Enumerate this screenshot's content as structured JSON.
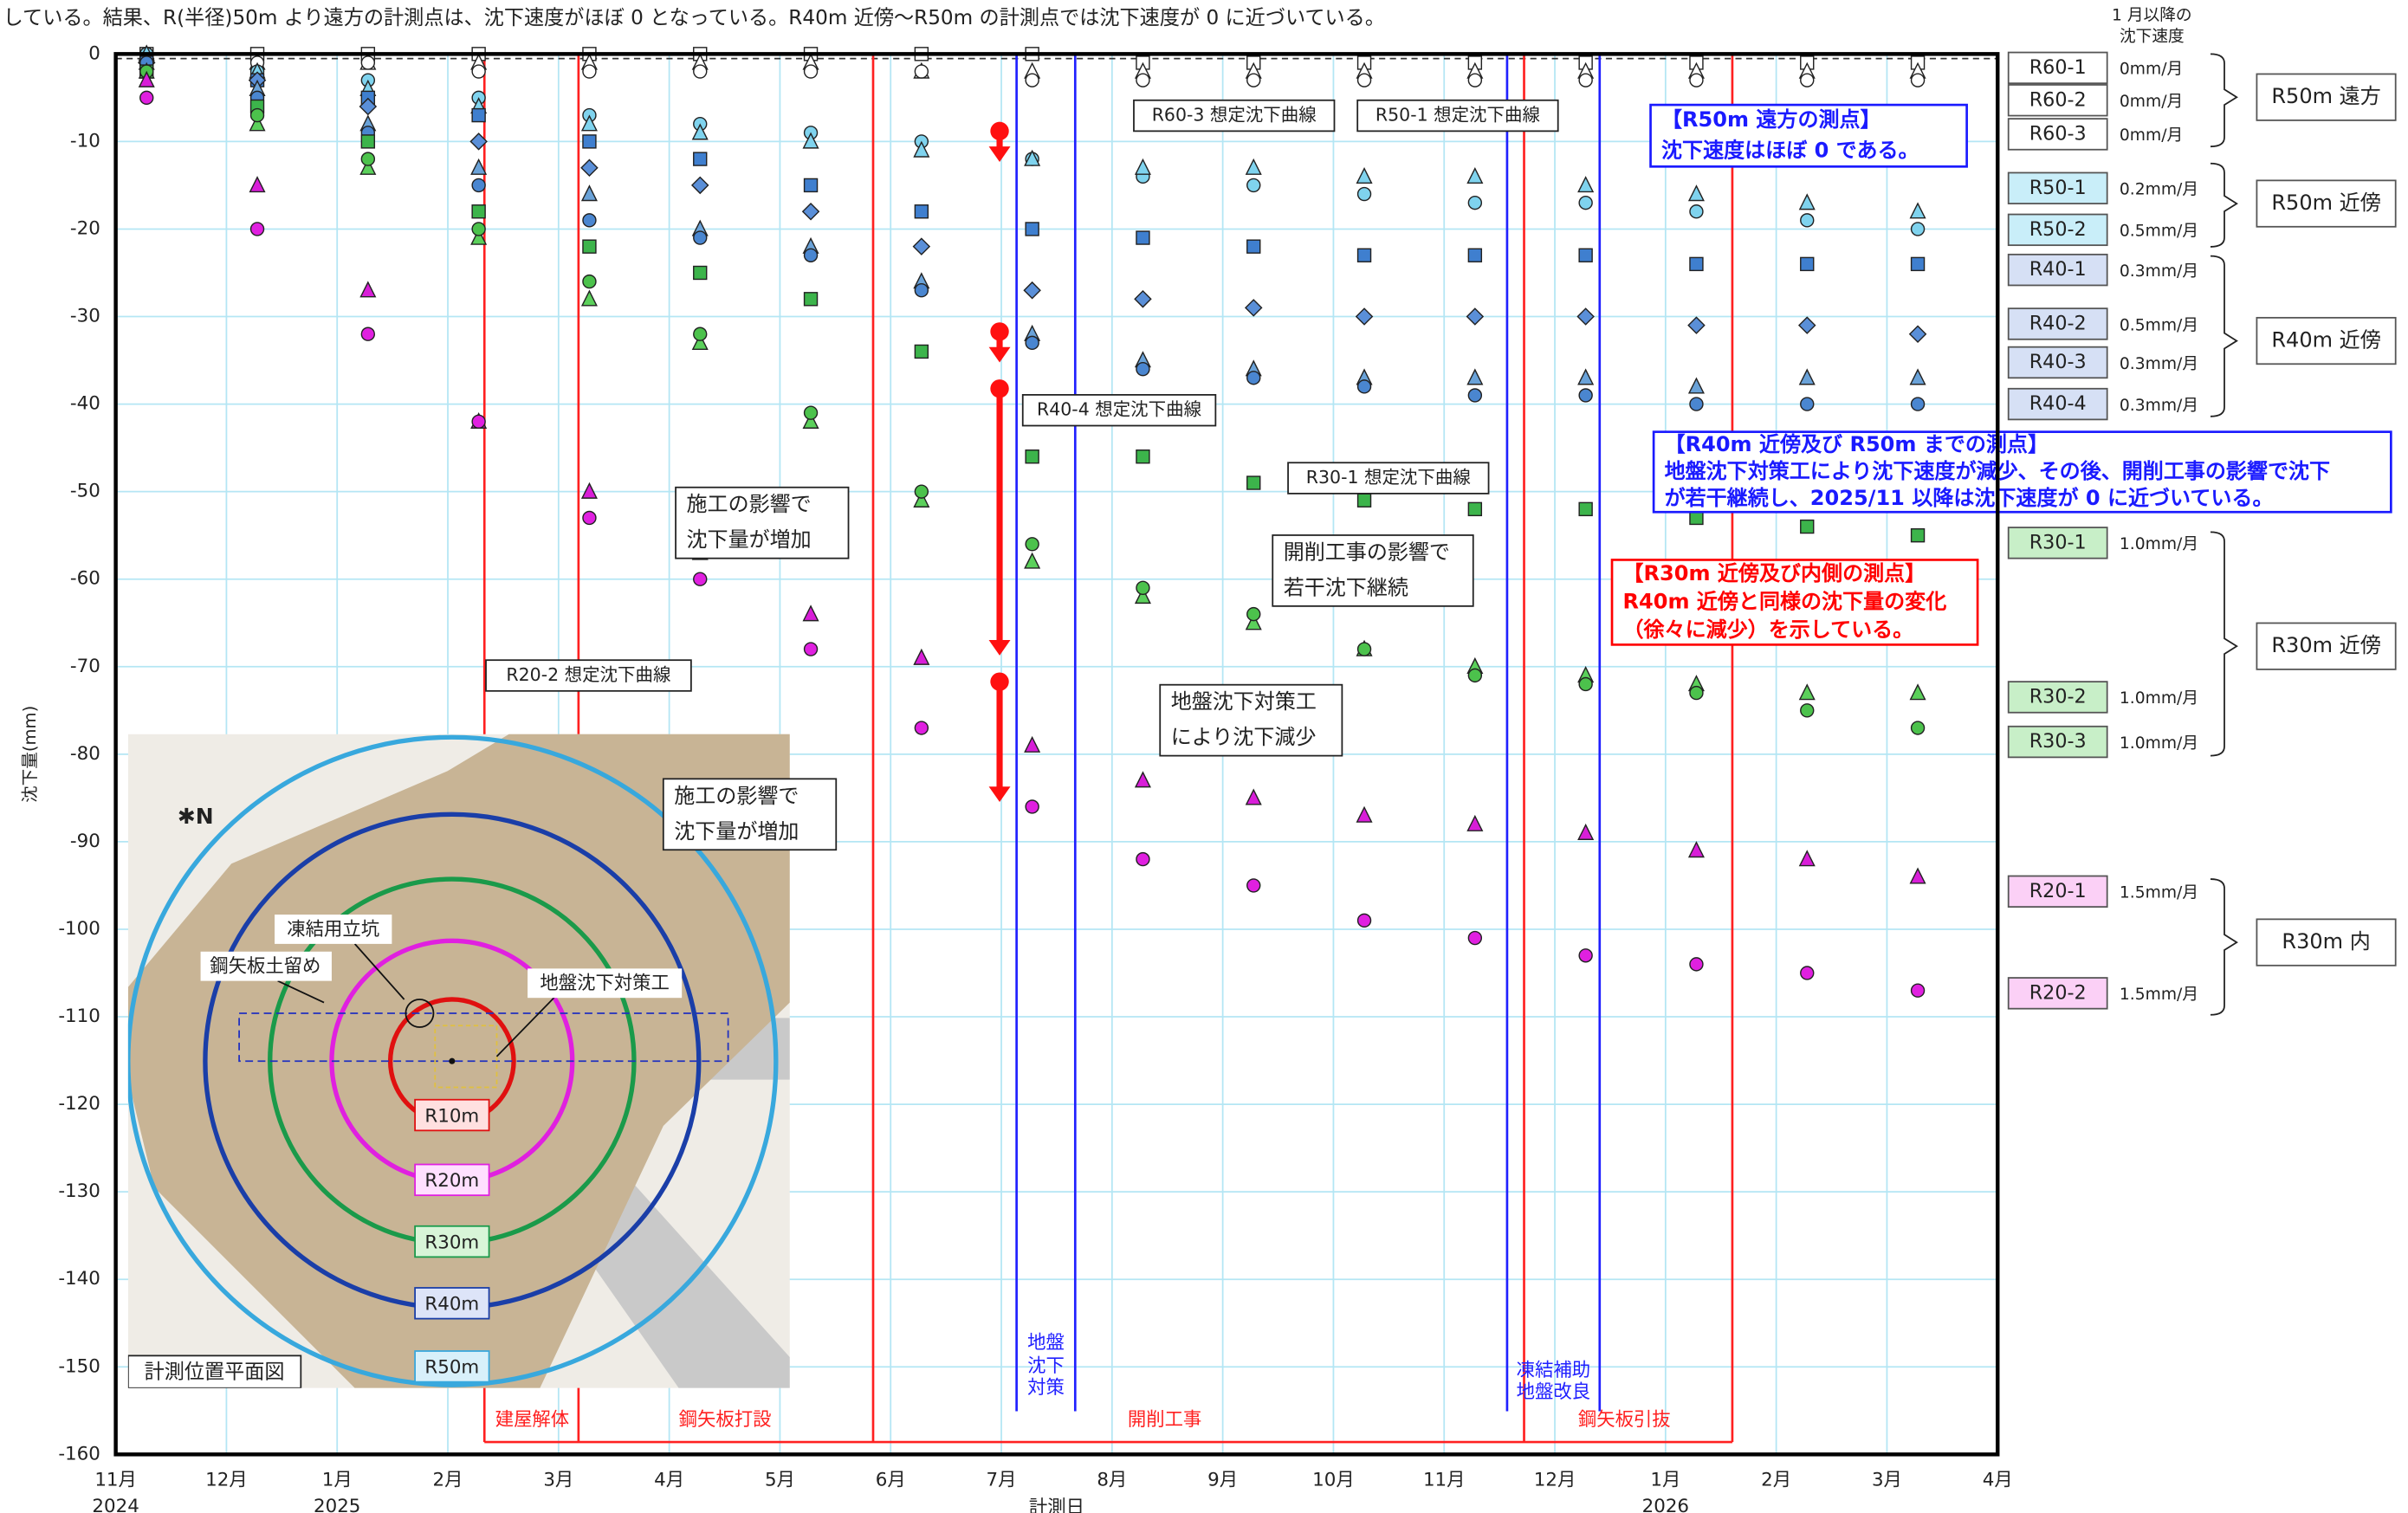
{
  "header_text": "している。結果、R(半径)50m より遠方の計測点は、沈下速度がほぼ 0 となっている。R40m 近傍～R50m の計測点では沈下速度が 0 に近づいている。",
  "chart_data": {
    "type": "scatter",
    "x_label": "計測日",
    "y_label": "沈下量(mm)",
    "x": [
      "2024-11",
      "2024-12",
      "2025-01",
      "2025-02",
      "2025-03",
      "2025-04",
      "2025-05",
      "2025-06",
      "2025-07",
      "2025-08",
      "2025-09",
      "2025-10",
      "2025-11",
      "2025-12",
      "2026-01",
      "2026-02",
      "2026-03"
    ],
    "xlim": [
      "2024-11",
      "2026-04"
    ],
    "xticks": [
      {
        "value": "2024-11",
        "label": "11月"
      },
      {
        "value": "2024-12",
        "label": "12月"
      },
      {
        "value": "2025-01",
        "label": "1月"
      },
      {
        "value": "2025-02",
        "label": "2月"
      },
      {
        "value": "2025-03",
        "label": "3月"
      },
      {
        "value": "2025-04",
        "label": "4月"
      },
      {
        "value": "2025-05",
        "label": "5月"
      },
      {
        "value": "2025-06",
        "label": "6月"
      },
      {
        "value": "2025-07",
        "label": "7月"
      },
      {
        "value": "2025-08",
        "label": "8月"
      },
      {
        "value": "2025-09",
        "label": "9月"
      },
      {
        "value": "2025-10",
        "label": "10月"
      },
      {
        "value": "2025-11",
        "label": "11月"
      },
      {
        "value": "2025-12",
        "label": "12月"
      },
      {
        "value": "2026-01",
        "label": "1月"
      },
      {
        "value": "2026-02",
        "label": "2月"
      },
      {
        "value": "2026-03",
        "label": "3月"
      },
      {
        "value": "2026-04",
        "label": "4月"
      }
    ],
    "xtick_years": [
      {
        "value": "2024-11",
        "label": "2024"
      },
      {
        "value": "2025-01",
        "label": "2025"
      },
      {
        "value": "2026-01",
        "label": "2026"
      }
    ],
    "ylim": [
      -160,
      0
    ],
    "yticks": [
      0,
      -10,
      -20,
      -30,
      -40,
      -50,
      -60,
      -70,
      -80,
      -90,
      -100,
      -110,
      -120,
      -130,
      -140,
      -150,
      -160
    ],
    "grid": true,
    "rate_header": [
      "1 月以降の",
      "沈下速度"
    ],
    "series": [
      {
        "name": "R60-1",
        "color": "#ffffff",
        "marker": "square",
        "rate": "0mm/月",
        "values": [
          0,
          0,
          0,
          0,
          0,
          0,
          0,
          0,
          0,
          -1,
          -1,
          -1,
          -1,
          -1,
          -1,
          -1,
          -1
        ]
      },
      {
        "name": "R60-2",
        "color": "#ffffff",
        "marker": "triangle",
        "rate": "0mm/月",
        "values": [
          0,
          -1,
          -1,
          -1,
          -1,
          -1,
          -1,
          -2,
          -2,
          -2,
          -2,
          -2,
          -2,
          -2,
          -2,
          -2,
          -2
        ]
      },
      {
        "name": "R60-3",
        "color": "#ffffff",
        "marker": "circle",
        "rate": "0mm/月",
        "values": [
          0,
          -1,
          -1,
          -2,
          -2,
          -2,
          -2,
          -2,
          -3,
          -3,
          -3,
          -3,
          -3,
          -3,
          -3,
          -3,
          -3
        ]
      },
      {
        "name": "R50-1",
        "color": "#7fd3ee",
        "marker": "circle",
        "rate": "0.2mm/月",
        "values": [
          0,
          -2,
          -3,
          -5,
          -7,
          -8,
          -9,
          -10,
          -12,
          -14,
          -15,
          -16,
          -17,
          -17,
          -18,
          -19,
          -20
        ]
      },
      {
        "name": "R50-2",
        "color": "#7fd3ee",
        "marker": "triangle",
        "rate": "0.5mm/月",
        "values": [
          0,
          -2,
          -4,
          -6,
          -8,
          -9,
          -10,
          -11,
          -12,
          -13,
          -13,
          -14,
          -14,
          -15,
          -16,
          -17,
          -18
        ]
      },
      {
        "name": "R40-1",
        "color": "#3f7fcf",
        "marker": "square",
        "rate": "0.3mm/月",
        "values": [
          -1,
          -3,
          -5,
          -7,
          -10,
          -12,
          -15,
          -18,
          -20,
          -21,
          -22,
          -23,
          -23,
          -23,
          -24,
          -24,
          -24
        ]
      },
      {
        "name": "R40-2",
        "color": "#5a8fd8",
        "marker": "diamond",
        "rate": "0.5mm/月",
        "values": [
          -1,
          -3,
          -6,
          -10,
          -13,
          -15,
          -18,
          -22,
          -27,
          -28,
          -29,
          -30,
          -30,
          -30,
          -31,
          -31,
          -32
        ]
      },
      {
        "name": "R40-3",
        "color": "#6aa2d8",
        "marker": "triangle",
        "rate": "0.3mm/月",
        "values": [
          -1,
          -4,
          -8,
          -13,
          -16,
          -20,
          -22,
          -26,
          -32,
          -35,
          -36,
          -37,
          -37,
          -37,
          -38,
          -37,
          -37
        ]
      },
      {
        "name": "R40-4",
        "color": "#4a86d0",
        "marker": "circle",
        "rate": "0.3mm/月",
        "values": [
          -1,
          -5,
          -9,
          -15,
          -19,
          -21,
          -23,
          -27,
          -33,
          -36,
          -37,
          -38,
          -39,
          -39,
          -40,
          -40,
          -40
        ]
      },
      {
        "name": "R30-1",
        "color": "#3cb44b",
        "marker": "square",
        "rate": "1.0mm/月",
        "values": [
          -2,
          -6,
          -10,
          -18,
          -22,
          -25,
          -28,
          -34,
          -46,
          -46,
          -49,
          -51,
          -52,
          -52,
          -53,
          -54,
          -55
        ]
      },
      {
        "name": "R30-2",
        "color": "#5bd05b",
        "marker": "triangle",
        "rate": "1.0mm/月",
        "values": [
          -2,
          -8,
          -13,
          -21,
          -28,
          -33,
          -42,
          -51,
          -58,
          -62,
          -65,
          -68,
          -70,
          -71,
          -72,
          -73,
          -73
        ]
      },
      {
        "name": "R30-3",
        "color": "#4cc24c",
        "marker": "circle",
        "rate": "1.0mm/月",
        "values": [
          -2,
          -7,
          -12,
          -20,
          -26,
          -32,
          -41,
          -50,
          -56,
          -61,
          -64,
          -68,
          -71,
          -72,
          -73,
          -75,
          -77
        ]
      },
      {
        "name": "R20-1",
        "color": "#d81ed8",
        "marker": "triangle",
        "rate": "1.5mm/月",
        "values": [
          -3,
          -15,
          -27,
          -42,
          -50,
          -57,
          -64,
          -69,
          -79,
          -83,
          -85,
          -87,
          -88,
          -89,
          -91,
          -92,
          -94
        ]
      },
      {
        "name": "R20-2",
        "color": "#e020e0",
        "marker": "circle",
        "rate": "1.5mm/月",
        "values": [
          -5,
          -20,
          -32,
          -42,
          -53,
          -60,
          -68,
          -77,
          -86,
          -92,
          -95,
          -99,
          -101,
          -103,
          -104,
          -105,
          -107
        ]
      }
    ],
    "groups": [
      "R50m 遠方",
      "R50m 近傍",
      "R40m 近傍",
      "R30m 近傍",
      "R30m 内"
    ],
    "phases": [
      "建屋解体",
      "鋼矢板打設",
      "開削工事",
      "鋼矢板引抜"
    ],
    "measures": [
      [
        "地盤",
        "沈下",
        "対策"
      ],
      [
        "凍結補助",
        "地盤改良"
      ]
    ],
    "annotations": [
      {
        "lines": [
          "R60-3 想定沈下曲線"
        ]
      },
      {
        "lines": [
          "R50-1 想定沈下曲線"
        ]
      },
      {
        "lines": [
          "【R50m 遠方の測点】",
          "沈下速度はほぼ 0 である。"
        ]
      },
      {
        "lines": [
          "R40-4 想定沈下曲線"
        ]
      },
      {
        "lines": [
          "R30-1 想定沈下曲線"
        ]
      },
      {
        "lines": [
          "施工の影響で",
          "沈下量が増加"
        ]
      },
      {
        "lines": [
          "開削工事の影響で",
          "若干沈下継続"
        ]
      },
      {
        "lines": [
          "【R40m 近傍及び R50m までの測点】",
          "地盤沈下対策工により沈下速度が減少、その後、開削工事の影響で沈下",
          "が若干継続し、2025/11 以降は沈下速度が 0 に近づいている。"
        ]
      },
      {
        "lines": [
          "【R30m 近傍及び内側の測点】",
          "R40m 近傍と同様の沈下量の変化",
          "（徐々に減少）を示している。"
        ]
      },
      {
        "lines": [
          "R20-2 想定沈下曲線"
        ]
      },
      {
        "lines": [
          "地盤沈下対策工",
          "により沈下減少"
        ]
      },
      {
        "lines": [
          "施工の影響で",
          "沈下量が増加"
        ]
      }
    ]
  },
  "inset": {
    "title": "計測位置平面図",
    "rings": [
      "R10m",
      "R20m",
      "R30m",
      "R40m",
      "R50m"
    ],
    "labels": [
      "凍結用立坑",
      "鋼矢板土留め",
      "地盤沈下対策工"
    ]
  }
}
